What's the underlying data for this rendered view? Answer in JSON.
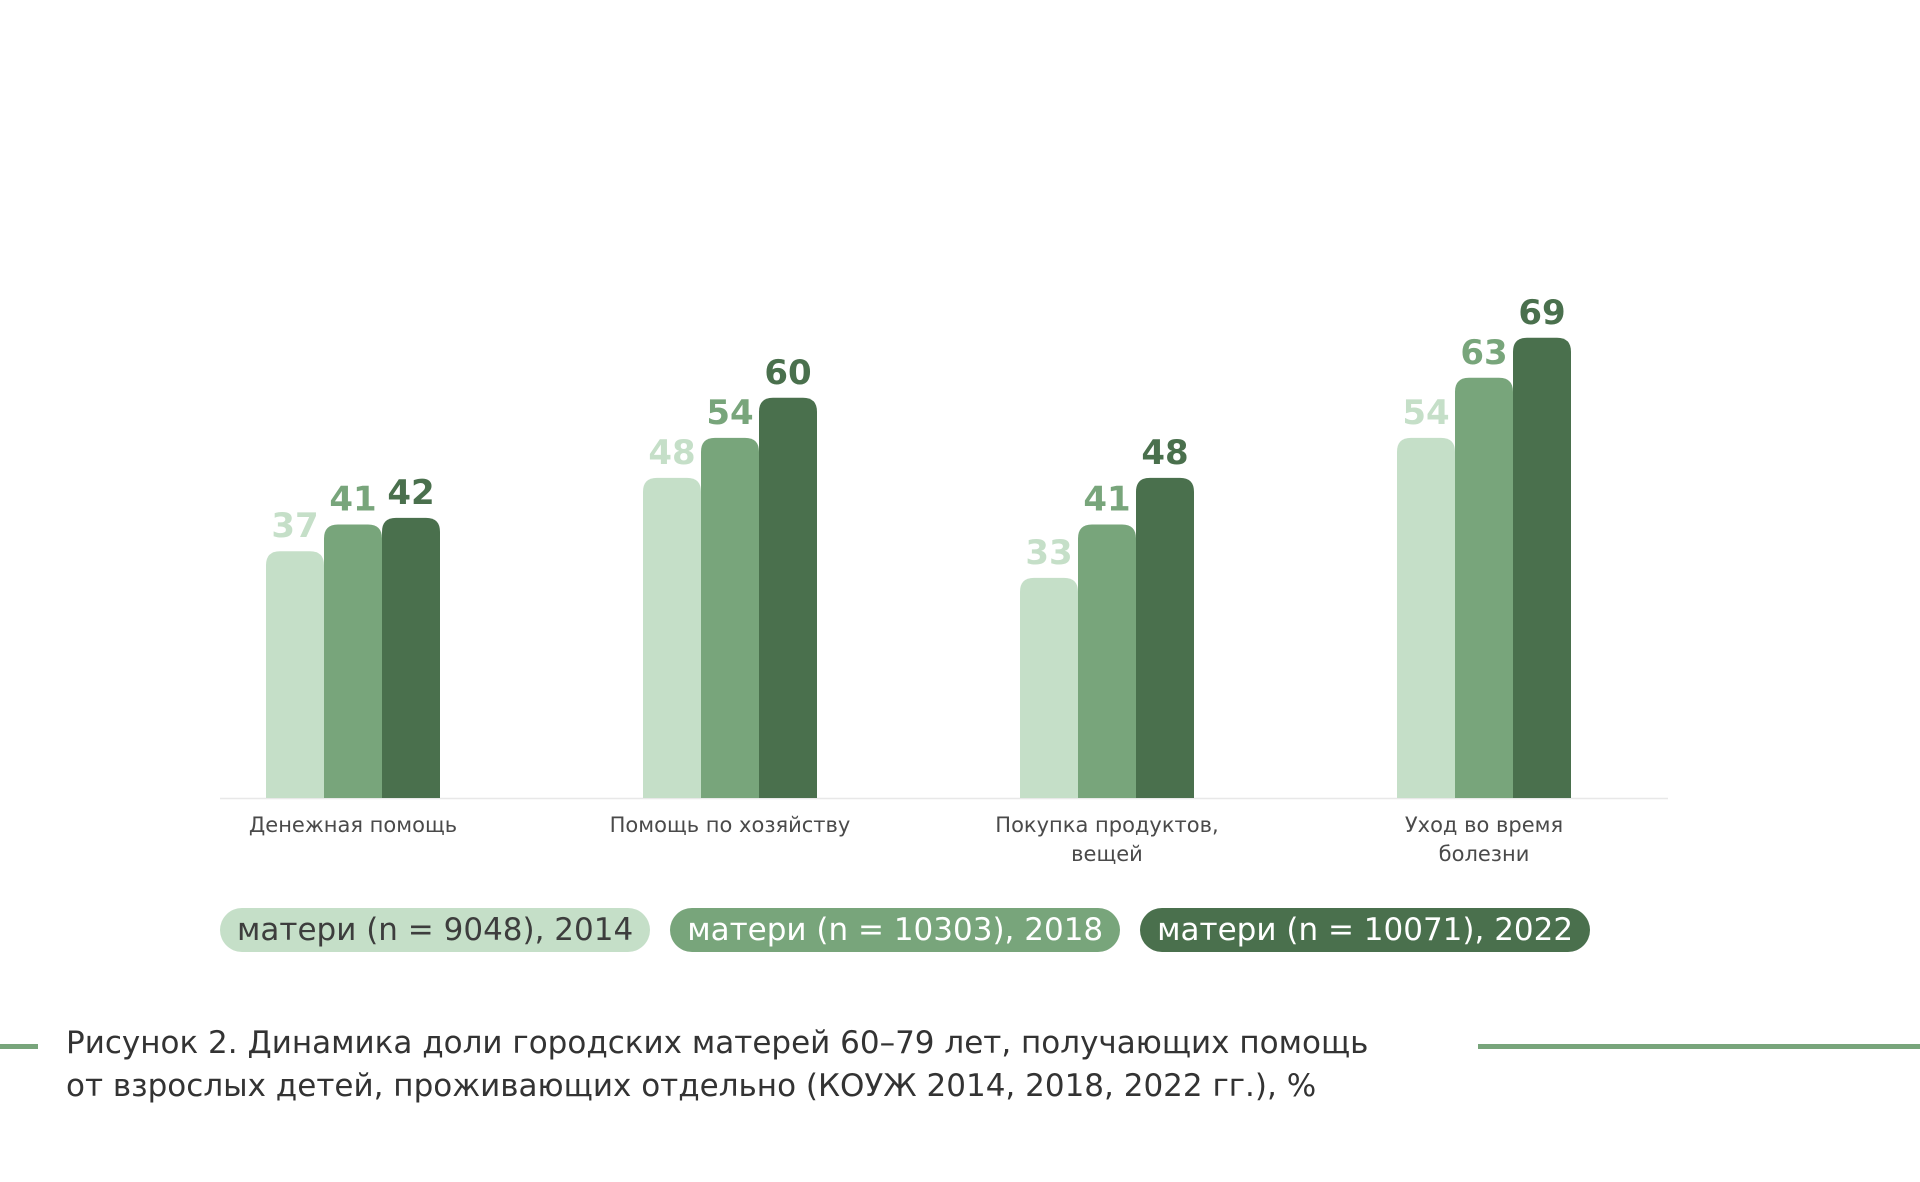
{
  "chart_data": {
    "type": "bar",
    "categories": [
      [
        "Денежная помощь"
      ],
      [
        "Помощь по хозяйству"
      ],
      [
        "Покупка продуктов,",
        "вещей"
      ],
      [
        "Уход во время",
        "болезни"
      ]
    ],
    "series": [
      {
        "name": "матери (n = 9048), 2014",
        "values": [
          37,
          48,
          33,
          54
        ],
        "color": "#c5dfc8"
      },
      {
        "name": "матери (n = 10303), 2018",
        "values": [
          41,
          54,
          41,
          63
        ],
        "color": "#78a57b"
      },
      {
        "name": "матери (n = 10071), 2022",
        "values": [
          42,
          60,
          48,
          69
        ],
        "color": "#4a704d"
      }
    ],
    "ylim": [
      0,
      69
    ],
    "grid": false,
    "legend_position": "bottom",
    "title": ""
  },
  "caption": {
    "line1": "Рисунок 2. Динамика доли городских матерей 60–79 лет, получающих помощь",
    "line2": "от взрослых детей, проживающих отдельно (КОУЖ 2014, 2018, 2022 гг.), %"
  },
  "colors": {
    "legend_text_light": "#3d3d3d",
    "legend_text_dark": "#ffffff",
    "accent_line": "#78a57b",
    "axis_line": "#e8e8e8"
  }
}
